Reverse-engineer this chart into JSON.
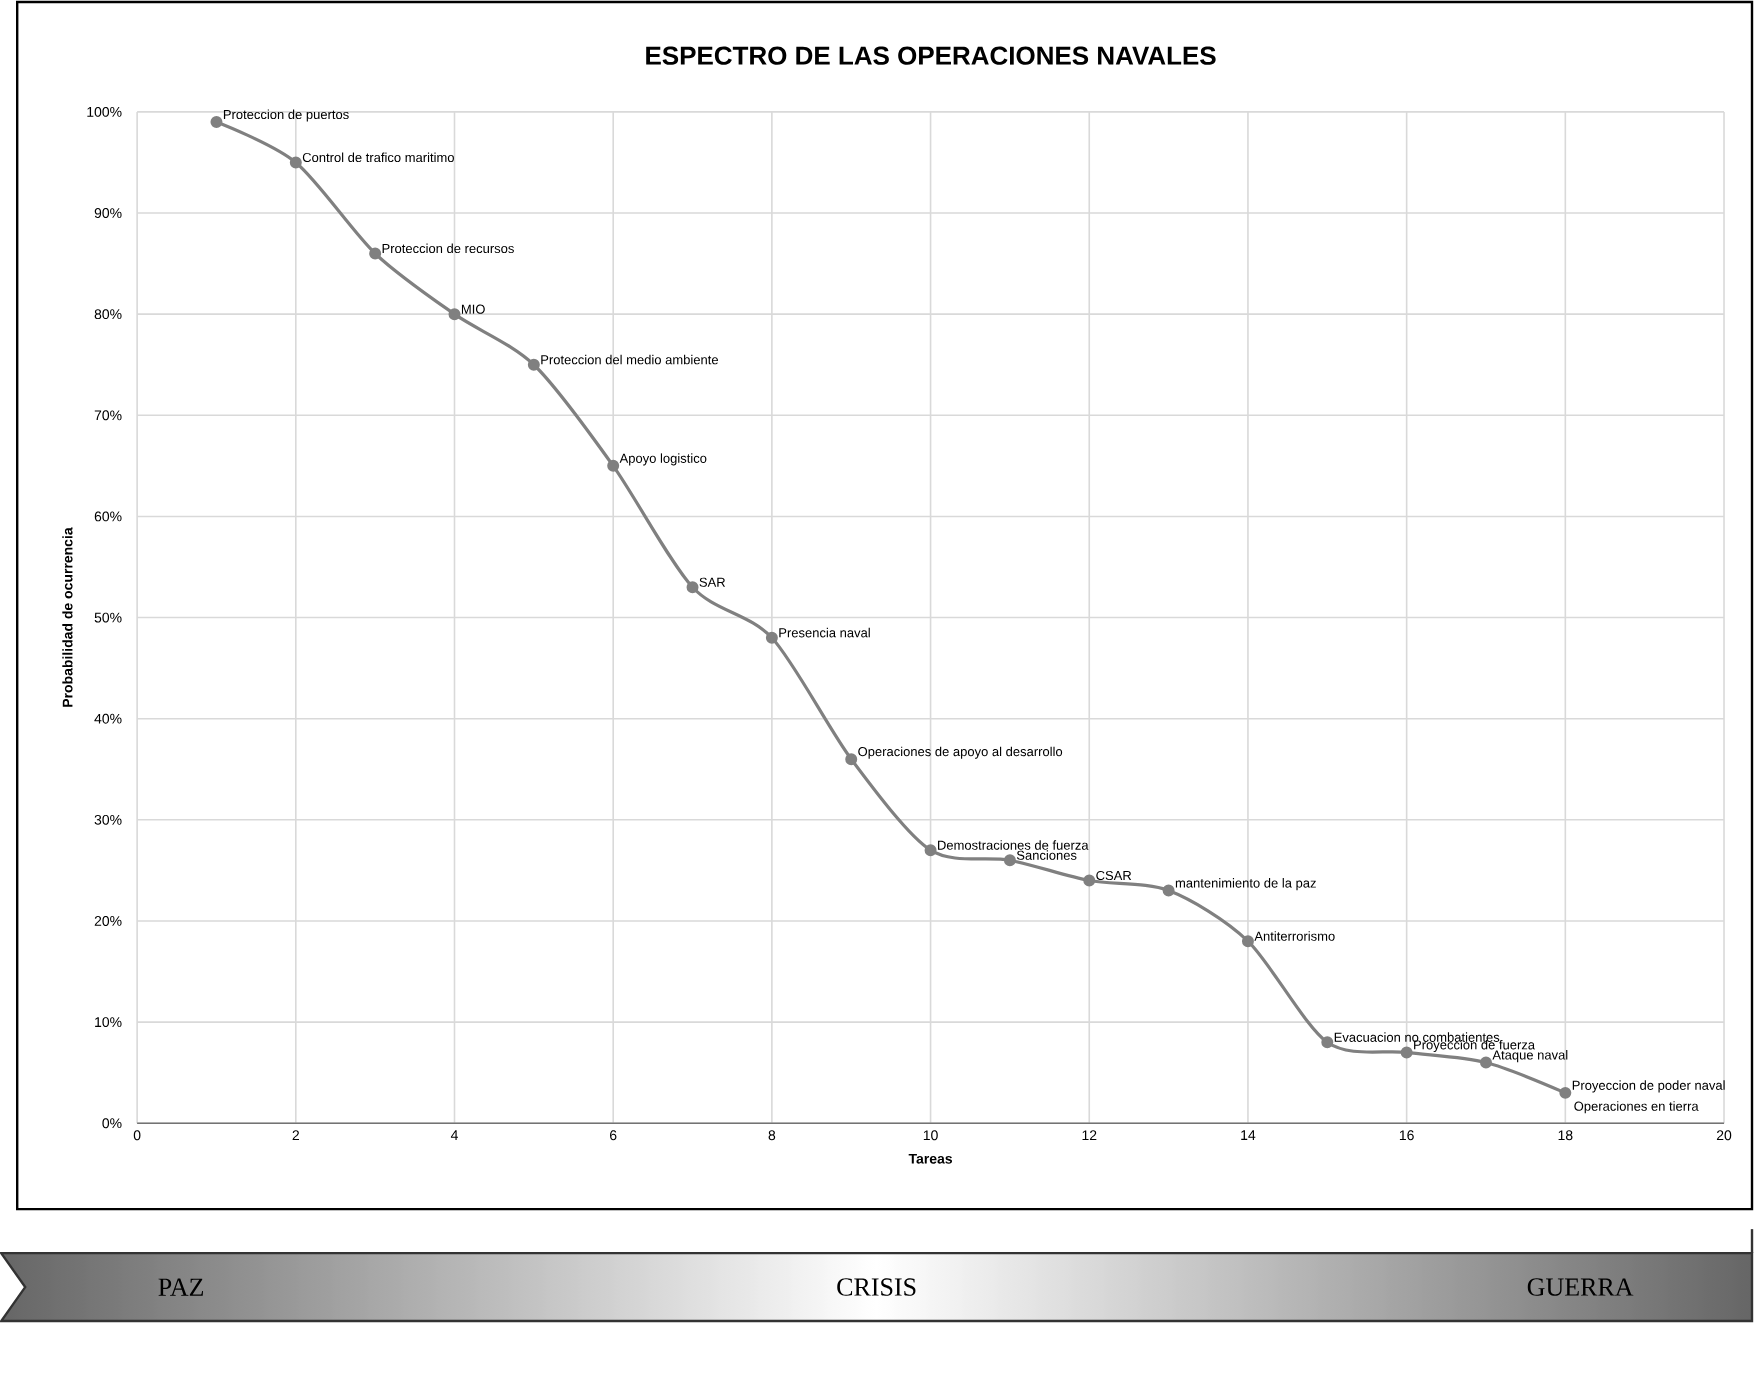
{
  "chart_data": {
    "type": "line",
    "title": "ESPECTRO DE LAS OPERACIONES NAVALES",
    "xlabel": "Tareas",
    "ylabel": "Probabilidad de ocurrencia",
    "x": [
      1,
      2,
      3,
      4,
      5,
      6,
      7,
      8,
      9,
      10,
      11,
      12,
      13,
      14,
      15,
      16,
      17,
      18
    ],
    "series": [
      {
        "color": "#808080",
        "values": [
          99,
          95,
          86,
          80,
          75,
          65,
          53,
          48,
          36,
          27,
          26,
          24,
          23,
          18,
          8,
          7,
          6,
          3
        ],
        "value_labels": [
          "Proteccion de puertos",
          "Control de trafico maritimo",
          "Proteccion de recursos",
          "MIO",
          "Proteccion del medio ambiente",
          "Apoyo logistico",
          "SAR",
          "Presencia naval",
          "Operaciones de apoyo al desarrollo",
          "Demostraciones de fuerza",
          "Sanciones",
          "CSAR",
          "mantenimiento de la paz",
          "Antiterrorismo",
          "Evacuacion no combatientes",
          "Proyeccion de fuerza",
          "Ataque naval",
          "Proyeccion de poder naval"
        ]
      }
    ],
    "xlim": [
      0,
      20
    ],
    "xticks": [
      0,
      2,
      4,
      6,
      8,
      10,
      12,
      14,
      16,
      18,
      20
    ],
    "ylim": [
      0,
      100
    ],
    "yticks": [
      {
        "value": 0,
        "label": "0%"
      },
      {
        "value": 10,
        "label": "10%"
      },
      {
        "value": 20,
        "label": "20%"
      },
      {
        "value": 30,
        "label": "30%"
      },
      {
        "value": 40,
        "label": "40%"
      },
      {
        "value": 50,
        "label": "50%"
      },
      {
        "value": 60,
        "label": "60%"
      },
      {
        "value": 70,
        "label": "70%"
      },
      {
        "value": 80,
        "label": "80%"
      },
      {
        "value": 90,
        "label": "90%"
      },
      {
        "value": 100,
        "label": "100%"
      }
    ],
    "grid": true,
    "marker": "circle",
    "line_style": "solid",
    "annotations": [
      "Operaciones en tierra",
      "PAZ",
      "CRISIS",
      "GUERRA"
    ]
  }
}
